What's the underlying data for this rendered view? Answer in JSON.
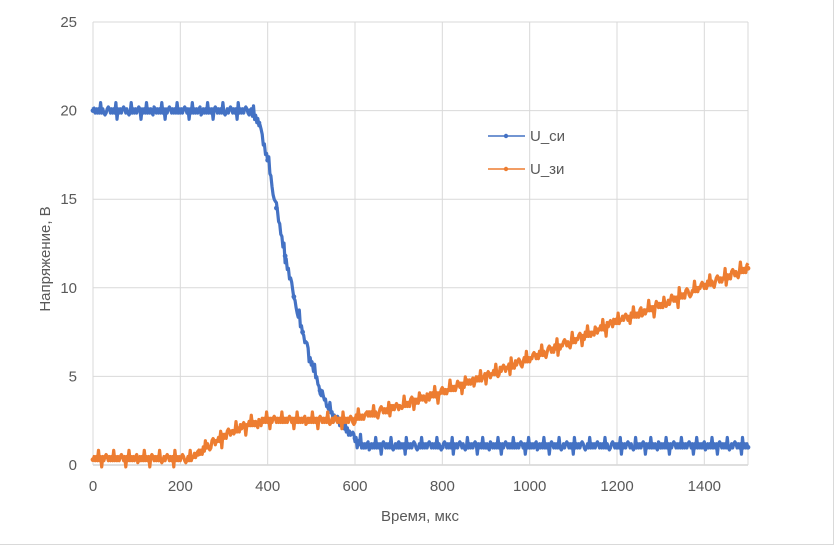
{
  "chart_data": {
    "type": "line",
    "title": "",
    "xlabel": "Время, мкс",
    "ylabel": "Напряжение, В",
    "xlim": [
      0,
      1500
    ],
    "ylim": [
      0,
      25
    ],
    "xticks": [
      0,
      200,
      400,
      600,
      800,
      1000,
      1200,
      1400
    ],
    "yticks": [
      0,
      5,
      10,
      15,
      20,
      25
    ],
    "grid": "vertical-and-horizontal",
    "legend_position": "upper-right-inside",
    "series": [
      {
        "name": "U_си",
        "color": "#4472C4",
        "points": [
          [
            0,
            20
          ],
          [
            360,
            20
          ],
          [
            380,
            19.3
          ],
          [
            400,
            17.2
          ],
          [
            420,
            14.5
          ],
          [
            440,
            11.8
          ],
          [
            460,
            9.5
          ],
          [
            480,
            7.5
          ],
          [
            500,
            5.8
          ],
          [
            520,
            4.2
          ],
          [
            540,
            3.2
          ],
          [
            560,
            2.5
          ],
          [
            580,
            2.0
          ],
          [
            600,
            1.5
          ],
          [
            620,
            1.0
          ],
          [
            700,
            1.0
          ],
          [
            800,
            1.0
          ],
          [
            900,
            1.0
          ],
          [
            1000,
            1.0
          ],
          [
            1100,
            1.0
          ],
          [
            1200,
            1.0
          ],
          [
            1300,
            1.0
          ],
          [
            1400,
            1.0
          ],
          [
            1500,
            1.0
          ]
        ]
      },
      {
        "name": "U_зи",
        "color": "#ED7D31",
        "points": [
          [
            0,
            0.3
          ],
          [
            220,
            0.3
          ],
          [
            240,
            0.6
          ],
          [
            260,
            1.0
          ],
          [
            280,
            1.3
          ],
          [
            300,
            1.6
          ],
          [
            320,
            1.9
          ],
          [
            340,
            2.1
          ],
          [
            360,
            2.3
          ],
          [
            380,
            2.4
          ],
          [
            400,
            2.5
          ],
          [
            500,
            2.5
          ],
          [
            560,
            2.5
          ],
          [
            600,
            2.6
          ],
          [
            700,
            3.3
          ],
          [
            800,
            4.1
          ],
          [
            900,
            5.0
          ],
          [
            1000,
            6.0
          ],
          [
            1100,
            7.0
          ],
          [
            1200,
            8.1
          ],
          [
            1300,
            9.0
          ],
          [
            1400,
            10.1
          ],
          [
            1500,
            11.1
          ]
        ]
      }
    ]
  }
}
